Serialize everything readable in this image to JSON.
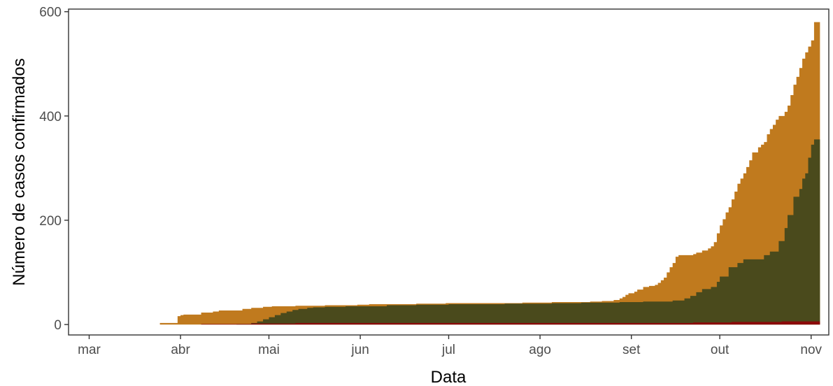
{
  "chart_data": {
    "type": "area",
    "xlabel": "Data",
    "ylabel": "Número de casos confirmados",
    "x_axis": {
      "type": "date",
      "range": [
        "2020-02-23",
        "2020-11-07"
      ],
      "ticks": [
        {
          "date": "2020-03-01",
          "label": "mar"
        },
        {
          "date": "2020-04-01",
          "label": "abr"
        },
        {
          "date": "2020-05-01",
          "label": "mai"
        },
        {
          "date": "2020-06-01",
          "label": "jun"
        },
        {
          "date": "2020-07-01",
          "label": "jul"
        },
        {
          "date": "2020-08-01",
          "label": "ago"
        },
        {
          "date": "2020-09-01",
          "label": "set"
        },
        {
          "date": "2020-10-01",
          "label": "out"
        },
        {
          "date": "2020-11-01",
          "label": "nov"
        }
      ]
    },
    "y_axis": {
      "range": [
        -20,
        605
      ],
      "ticks": [
        {
          "value": 0,
          "label": "0"
        },
        {
          "value": 200,
          "label": "200"
        },
        {
          "value": 400,
          "label": "400"
        },
        {
          "value": 600,
          "label": "600"
        }
      ]
    },
    "grid": false,
    "step": true,
    "series": [
      {
        "color": "#c07a1e",
        "points": [
          [
            "2020-03-13",
            0
          ],
          [
            "2020-03-25",
            3
          ],
          [
            "2020-03-31",
            16
          ],
          [
            "2020-04-01",
            18
          ],
          [
            "2020-04-02",
            19
          ],
          [
            "2020-04-08",
            23
          ],
          [
            "2020-04-12",
            25
          ],
          [
            "2020-04-14",
            27
          ],
          [
            "2020-04-22",
            30
          ],
          [
            "2020-04-25",
            32
          ],
          [
            "2020-04-29",
            34
          ],
          [
            "2020-05-02",
            35
          ],
          [
            "2020-05-10",
            36
          ],
          [
            "2020-05-20",
            37
          ],
          [
            "2020-05-31",
            38
          ],
          [
            "2020-06-02",
            38
          ],
          [
            "2020-06-04",
            39
          ],
          [
            "2020-06-20",
            40
          ],
          [
            "2020-06-30",
            41
          ],
          [
            "2020-07-26",
            42
          ],
          [
            "2020-08-05",
            43
          ],
          [
            "2020-08-18",
            44
          ],
          [
            "2020-08-22",
            45
          ],
          [
            "2020-08-26",
            47
          ],
          [
            "2020-08-28",
            50
          ],
          [
            "2020-08-29",
            53
          ],
          [
            "2020-08-30",
            57
          ],
          [
            "2020-08-31",
            60
          ],
          [
            "2020-09-02",
            63
          ],
          [
            "2020-09-03",
            67
          ],
          [
            "2020-09-05",
            72
          ],
          [
            "2020-09-07",
            74
          ],
          [
            "2020-09-09",
            76
          ],
          [
            "2020-09-10",
            80
          ],
          [
            "2020-09-11",
            85
          ],
          [
            "2020-09-12",
            90
          ],
          [
            "2020-09-13",
            100
          ],
          [
            "2020-09-14",
            110
          ],
          [
            "2020-09-15",
            118
          ],
          [
            "2020-09-16",
            130
          ],
          [
            "2020-09-17",
            133
          ],
          [
            "2020-09-22",
            135
          ],
          [
            "2020-09-23",
            138
          ],
          [
            "2020-09-25",
            142
          ],
          [
            "2020-09-27",
            146
          ],
          [
            "2020-09-28",
            150
          ],
          [
            "2020-09-29",
            158
          ],
          [
            "2020-09-30",
            175
          ],
          [
            "2020-10-01",
            190
          ],
          [
            "2020-10-02",
            202
          ],
          [
            "2020-10-03",
            215
          ],
          [
            "2020-10-04",
            225
          ],
          [
            "2020-10-05",
            240
          ],
          [
            "2020-10-06",
            255
          ],
          [
            "2020-10-07",
            270
          ],
          [
            "2020-10-08",
            280
          ],
          [
            "2020-10-09",
            290
          ],
          [
            "2020-10-10",
            302
          ],
          [
            "2020-10-11",
            315
          ],
          [
            "2020-10-12",
            330
          ],
          [
            "2020-10-14",
            340
          ],
          [
            "2020-10-15",
            345
          ],
          [
            "2020-10-16",
            350
          ],
          [
            "2020-10-17",
            365
          ],
          [
            "2020-10-18",
            375
          ],
          [
            "2020-10-19",
            383
          ],
          [
            "2020-10-20",
            393
          ],
          [
            "2020-10-21",
            400
          ],
          [
            "2020-10-23",
            408
          ],
          [
            "2020-10-24",
            420
          ],
          [
            "2020-10-25",
            440
          ],
          [
            "2020-10-26",
            460
          ],
          [
            "2020-10-27",
            475
          ],
          [
            "2020-10-28",
            492
          ],
          [
            "2020-10-29",
            510
          ],
          [
            "2020-10-30",
            522
          ],
          [
            "2020-10-31",
            533
          ],
          [
            "2020-11-01",
            545
          ],
          [
            "2020-11-02",
            580
          ],
          [
            "2020-11-03",
            580
          ]
        ]
      },
      {
        "color": "#4a4a1c",
        "points": [
          [
            "2020-04-05",
            0
          ],
          [
            "2020-04-20",
            1
          ],
          [
            "2020-04-25",
            3
          ],
          [
            "2020-04-27",
            6
          ],
          [
            "2020-04-29",
            10
          ],
          [
            "2020-05-01",
            14
          ],
          [
            "2020-05-03",
            18
          ],
          [
            "2020-05-05",
            22
          ],
          [
            "2020-05-07",
            25
          ],
          [
            "2020-05-09",
            28
          ],
          [
            "2020-05-11",
            30
          ],
          [
            "2020-05-14",
            32
          ],
          [
            "2020-05-16",
            33
          ],
          [
            "2020-05-20",
            34
          ],
          [
            "2020-05-27",
            35
          ],
          [
            "2020-06-01",
            35
          ],
          [
            "2020-06-10",
            37
          ],
          [
            "2020-06-20",
            38
          ],
          [
            "2020-07-01",
            39
          ],
          [
            "2020-07-20",
            40
          ],
          [
            "2020-08-05",
            41
          ],
          [
            "2020-08-15",
            42
          ],
          [
            "2020-08-28",
            43
          ],
          [
            "2020-09-05",
            44
          ],
          [
            "2020-09-15",
            46
          ],
          [
            "2020-09-19",
            50
          ],
          [
            "2020-09-21",
            55
          ],
          [
            "2020-09-23",
            62
          ],
          [
            "2020-09-25",
            68
          ],
          [
            "2020-09-28",
            72
          ],
          [
            "2020-09-30",
            82
          ],
          [
            "2020-10-01",
            92
          ],
          [
            "2020-10-04",
            110
          ],
          [
            "2020-10-07",
            118
          ],
          [
            "2020-10-09",
            125
          ],
          [
            "2020-10-16",
            133
          ],
          [
            "2020-10-18",
            140
          ],
          [
            "2020-10-21",
            160
          ],
          [
            "2020-10-23",
            185
          ],
          [
            "2020-10-24",
            210
          ],
          [
            "2020-10-26",
            245
          ],
          [
            "2020-10-28",
            260
          ],
          [
            "2020-10-29",
            280
          ],
          [
            "2020-10-30",
            290
          ],
          [
            "2020-10-31",
            320
          ],
          [
            "2020-11-01",
            345
          ],
          [
            "2020-11-02",
            355
          ],
          [
            "2020-11-03",
            355
          ]
        ]
      },
      {
        "color": "#8b0a0a",
        "points": [
          [
            "2020-03-13",
            0
          ],
          [
            "2020-04-08",
            1
          ],
          [
            "2020-04-25",
            2
          ],
          [
            "2020-05-10",
            3
          ],
          [
            "2020-06-10",
            3
          ],
          [
            "2020-08-20",
            3
          ],
          [
            "2020-09-22",
            4
          ],
          [
            "2020-10-05",
            5
          ],
          [
            "2020-10-22",
            6
          ],
          [
            "2020-11-03",
            6
          ]
        ]
      }
    ]
  }
}
